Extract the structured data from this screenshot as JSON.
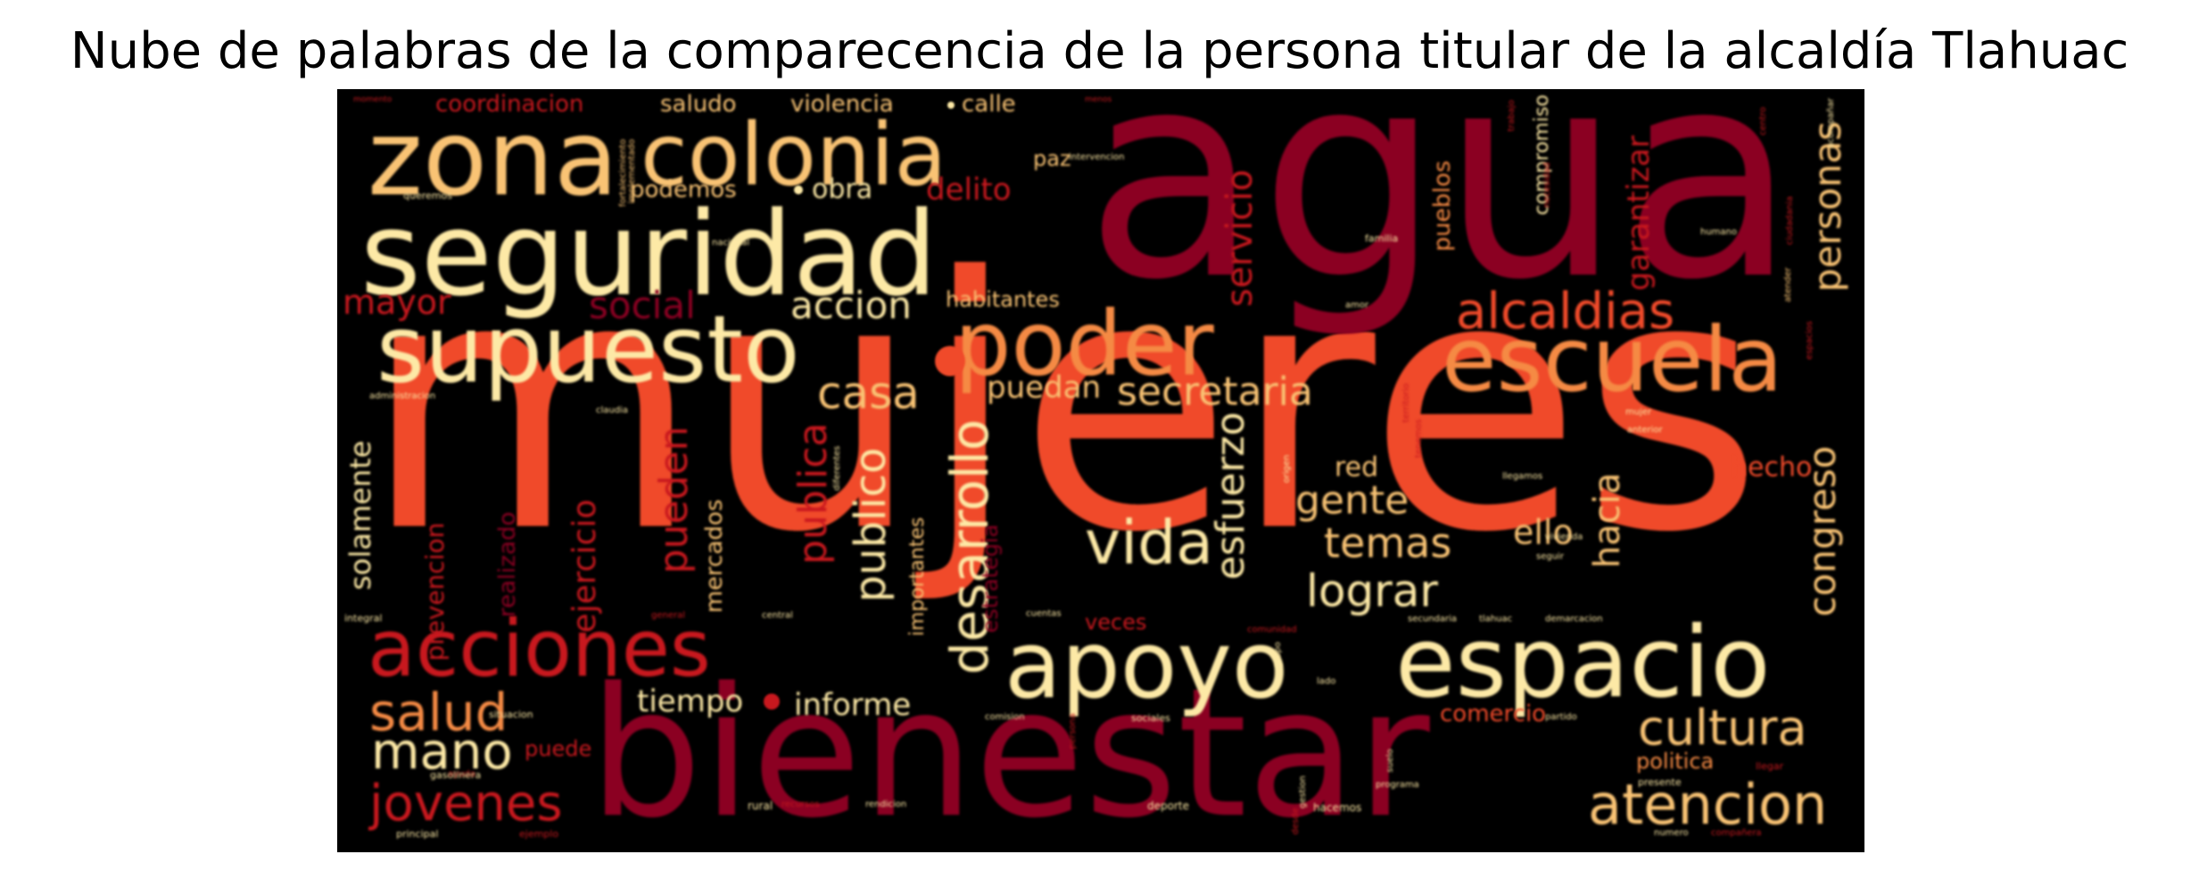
{
  "title": "Nube de palabras de la comparecencia de la persona titular de la alcaldía Tlahuac",
  "colors": {
    "dark_red": "#8b0022",
    "red": "#c8181e",
    "orange_red": "#f04a2a",
    "orange": "#f58a44",
    "gold": "#f9c374",
    "cream": "#fde9a6",
    "background": "#000000"
  },
  "words": {
    "mujeres": "mujeres",
    "agua": "agua",
    "bienestar": "bienestar",
    "seguridad": "seguridad",
    "zona": "zona",
    "colonia": "colonia",
    "supuesto": "supuesto",
    "poder": "poder",
    "escuela": "escuela",
    "espacio": "espacio",
    "apoyo": "apoyo",
    "acciones": "acciones",
    "alcaldias": "alcaldias",
    "atencion": "atencion",
    "cultura": "cultura",
    "jovenes": "jovenes",
    "salud": "salud",
    "mano": "mano",
    "vida": "vida",
    "desarrollo": "desarrollo",
    "publico": "publico",
    "publica": "publica",
    "lograr": "lograr",
    "temas": "temas",
    "gente": "gente",
    "esfuerzo": "esfuerzo",
    "secretaria": "secretaria",
    "servicio": "servicio",
    "casa": "casa",
    "accion": "accion",
    "social": "social",
    "personas": "personas",
    "garantizar": "garantizar",
    "congreso": "congreso",
    "hacia": "hacia",
    "ello": "ello",
    "hecho": "hecho",
    "red": "red",
    "puedan": "puedan",
    "pueden": "pueden",
    "ejercicio": "ejercicio",
    "solamente": "solamente",
    "prevencion": "prevencion",
    "realizado": "realizado",
    "mercados": "mercados",
    "importantes": "importantes",
    "estrategia": "estrategia",
    "informe": "informe",
    "tiempo": "tiempo",
    "veces": "veces",
    "comercio": "comercio",
    "politica": "politica",
    "puede": "puede",
    "mayor": "mayor",
    "coordinacion": "coordinacion",
    "saludo": "saludo",
    "violencia": "violencia",
    "calle": "calle",
    "podemos": "podemos",
    "obra": "obra",
    "delito": "delito",
    "paz": "paz",
    "habitantes": "habitantes",
    "pueblos": "pueblos",
    "compromiso": "compromiso",
    "situacion": "situacion",
    "rural": "rural",
    "deporte": "deporte",
    "hacemos": "hacemos",
    "familia": "familia",
    "nacional": "nacional",
    "queremos": "queremos",
    "integral": "integral",
    "general": "general",
    "central": "central",
    "ayuda": "ayuda",
    "gasolinera": "gasolinera",
    "principal": "principal",
    "ejemplo": "ejemplo",
    "cuentas": "cuentas",
    "sociales": "sociales",
    "partido": "partido",
    "presente": "presente",
    "llegar": "llegar",
    "mujer": "mujer",
    "anterior": "anterior",
    "humano": "humano",
    "amor": "amor",
    "claudia": "claudia",
    "administracion": "administracion",
    "momento": "momento",
    "recursos": "recursos",
    "numero": "numero",
    "compañera": "compañera",
    "intervencion": "intervencion",
    "fortalecimiento": "fortalecimiento",
    "implementado": "implementado",
    "gestion": "gestion",
    "origen": "origen",
    "vivienda": "vivienda",
    "seguir": "seguir",
    "comunidad": "comunidad",
    "diferentes": "diferentes",
    "territorio": "territorio",
    "lado": "lado",
    "suelo": "suelo",
    "secundaria": "secundaria",
    "demarcacion": "demarcacion",
    "llegamos": "llegamos",
    "rendicion": "rendicion",
    "comision": "comision",
    "persona": "persona",
    "necesidad": "necesidad",
    "ciudadania": "ciudadania",
    "atender": "atender",
    "grupo": "grupo",
    "desde": "desde",
    "menos": "menos",
    "acompañar": "acompañar",
    "tlahuac": "tlahuac",
    "espacios": "espacios",
    "trabajo": "trabajo",
    "centro": "centro",
    "tenemos": "tenemos",
    "programa": "programa"
  }
}
